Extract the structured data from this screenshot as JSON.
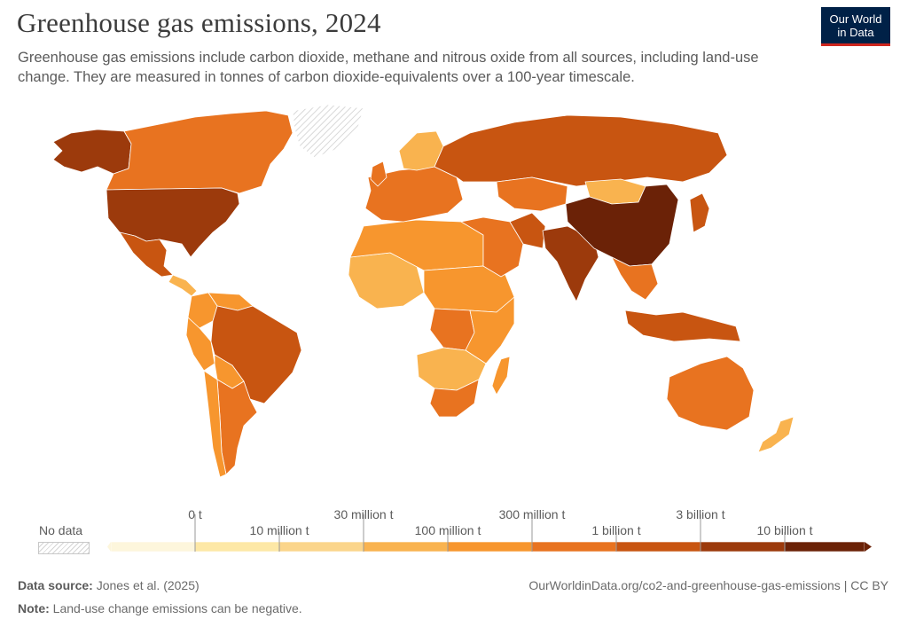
{
  "header": {
    "title": "Greenhouse gas emissions, 2024",
    "subtitle": "Greenhouse gas emissions include carbon dioxide, methane and nitrous oxide from all sources, including land-use change. They are measured in tonnes of carbon dioxide-equivalents over a 100-year timescale.",
    "logo_line1": "Our World",
    "logo_line2": "in Data"
  },
  "colors": {
    "bins": [
      "#fdf6dc",
      "#fde8a6",
      "#fbd58b",
      "#f9b34f",
      "#f7962e",
      "#e87320",
      "#c85511",
      "#9c3a0c",
      "#6b2207"
    ],
    "no_data": "#e6e6e6",
    "border": "#ffffff",
    "logo_bg": "#002147",
    "logo_accent": "#ce261e"
  },
  "legend": {
    "no_data_label": "No data",
    "top_labels": [
      "0 t",
      "30 million t",
      "300 million t",
      "3 billion t"
    ],
    "bottom_labels": [
      "10 million t",
      "100 million t",
      "1 billion t",
      "10 billion t"
    ]
  },
  "map": {
    "regions": [
      {
        "name": "Alaska",
        "bin": 7
      },
      {
        "name": "Canada",
        "bin": 5
      },
      {
        "name": "United States",
        "bin": 7
      },
      {
        "name": "Mexico",
        "bin": 6
      },
      {
        "name": "Central America",
        "bin": 3
      },
      {
        "name": "Greenland",
        "bin": -1
      },
      {
        "name": "Colombia",
        "bin": 4
      },
      {
        "name": "Venezuela",
        "bin": 4
      },
      {
        "name": "Peru",
        "bin": 4
      },
      {
        "name": "Brazil",
        "bin": 6
      },
      {
        "name": "Bolivia",
        "bin": 4
      },
      {
        "name": "Argentina",
        "bin": 5
      },
      {
        "name": "Chile",
        "bin": 4
      },
      {
        "name": "West Africa",
        "bin": 3
      },
      {
        "name": "North Africa",
        "bin": 4
      },
      {
        "name": "Central Africa",
        "bin": 4
      },
      {
        "name": "DR Congo",
        "bin": 5
      },
      {
        "name": "East Africa",
        "bin": 4
      },
      {
        "name": "Southern Africa",
        "bin": 3
      },
      {
        "name": "South Africa",
        "bin": 5
      },
      {
        "name": "Madagascar",
        "bin": 4
      },
      {
        "name": "Europe",
        "bin": 5
      },
      {
        "name": "Scandinavia",
        "bin": 3
      },
      {
        "name": "Russia",
        "bin": 6
      },
      {
        "name": "Kazakhstan",
        "bin": 5
      },
      {
        "name": "Middle East",
        "bin": 5
      },
      {
        "name": "Iran",
        "bin": 6
      },
      {
        "name": "India",
        "bin": 7
      },
      {
        "name": "Mongolia",
        "bin": 3
      },
      {
        "name": "China",
        "bin": 8
      },
      {
        "name": "Southeast Asia",
        "bin": 5
      },
      {
        "name": "Indonesia",
        "bin": 6
      },
      {
        "name": "Japan",
        "bin": 6
      },
      {
        "name": "Australia",
        "bin": 5
      },
      {
        "name": "New Zealand",
        "bin": 3
      },
      {
        "name": "United Kingdom",
        "bin": 5
      }
    ]
  },
  "footer": {
    "source_label": "Data source:",
    "source_value": "Jones et al. (2025)",
    "url": "OurWorldinData.org/co2-and-greenhouse-gas-emissions | CC BY",
    "note_label": "Note:",
    "note_value": "Land-use change emissions can be negative."
  }
}
